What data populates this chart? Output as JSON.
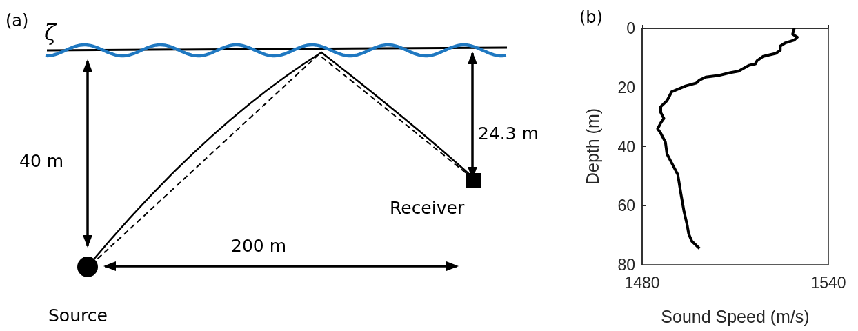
{
  "chart_data": [
    {
      "type": "other",
      "title": "(a)",
      "annotations": [
        "ζ",
        "40 m",
        "24.3 m",
        "200 m",
        "Receiver",
        "Source"
      ]
    },
    {
      "type": "line",
      "title": "(b)",
      "xlabel": "Sound Speed (m/s)",
      "ylabel": "Depth (m)",
      "color": "#000000",
      "marker": "none",
      "grid": false,
      "x": [
        1529,
        1528.5,
        1530,
        1529,
        1526,
        1524.5,
        1524.5,
        1523,
        1519,
        1517,
        1516.5,
        1514.5,
        1511,
        1508.5,
        1504.5,
        1500.5,
        1498.5,
        1497.5,
        1494,
        1489.5,
        1489,
        1488,
        1486,
        1486,
        1487,
        1486,
        1485,
        1486,
        1487.5,
        1488,
        1490,
        1491.5,
        1492.5,
        1493.5,
        1494.5,
        1495,
        1496,
        1498.5
      ],
      "values": [
        0,
        2,
        3,
        4,
        5,
        6,
        7.5,
        8.5,
        9.5,
        11,
        12,
        12.5,
        14.5,
        15,
        16,
        16.5,
        17.5,
        18.5,
        19.5,
        21.5,
        22.5,
        24.5,
        26.5,
        28.5,
        30.5,
        32,
        34,
        35.5,
        38.5,
        42.5,
        46.5,
        49.5,
        56,
        62,
        66.5,
        69.5,
        72,
        74.5
      ],
      "xlim": [
        1480,
        1540
      ],
      "xticks": [
        1480,
        1540
      ],
      "ylim": [
        80,
        0
      ],
      "yticks": [
        0,
        20,
        40,
        60,
        80
      ]
    }
  ]
}
